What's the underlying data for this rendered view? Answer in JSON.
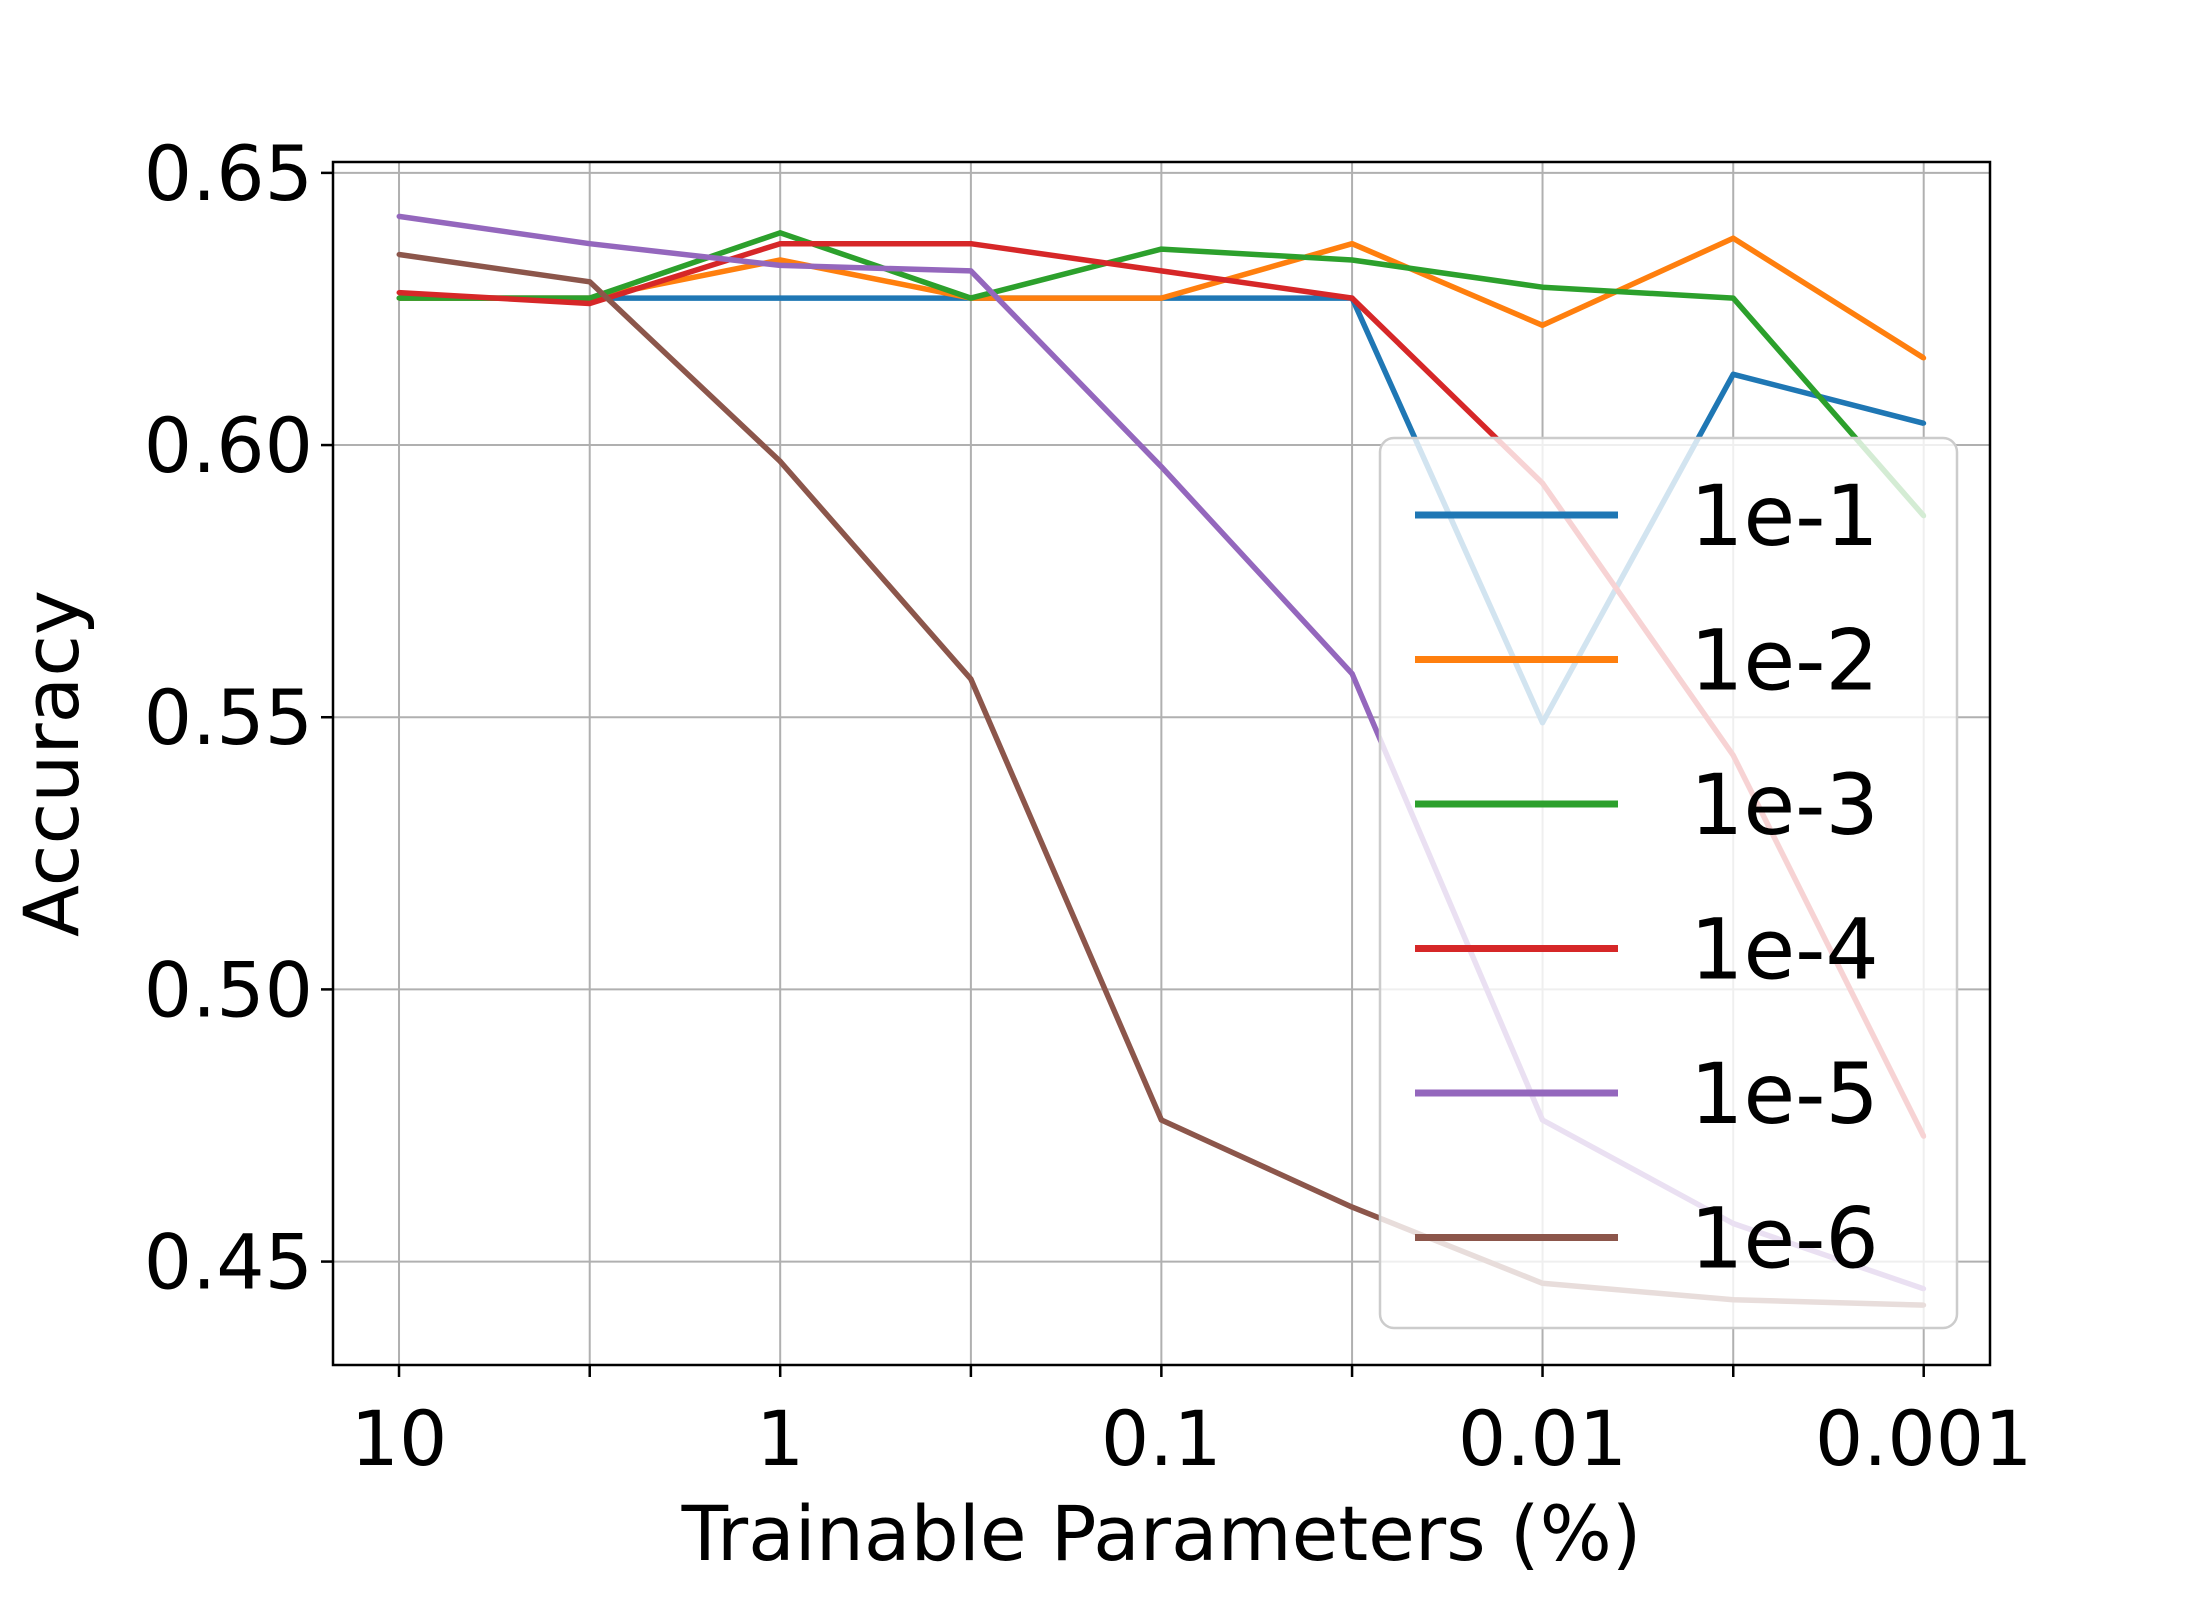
{
  "chart_data": {
    "type": "line",
    "title": "",
    "xlabel": "Trainable Parameters (%)",
    "ylabel": "Accuracy",
    "x_scale": "log",
    "x_reversed": true,
    "x": [
      10,
      3.16,
      1,
      0.316,
      0.1,
      0.0316,
      0.01,
      0.00316,
      0.001
    ],
    "x_ticks": [
      10,
      1,
      0.1,
      0.01,
      0.001
    ],
    "x_tick_labels": [
      "10",
      "1",
      "0.1",
      "0.01",
      "0.001"
    ],
    "xlim": [
      14.9,
      0.00067
    ],
    "ylim": [
      0.431,
      0.652
    ],
    "y_ticks": [
      0.45,
      0.5,
      0.55,
      0.6,
      0.65
    ],
    "y_tick_labels": [
      "0.45",
      "0.50",
      "0.55",
      "0.60",
      "0.65"
    ],
    "grid": true,
    "legend_position": "lower-right",
    "series": [
      {
        "name": "1e-1",
        "color": "#1f77b4",
        "values": [
          0.627,
          0.627,
          0.627,
          0.627,
          0.627,
          0.627,
          0.549,
          0.613,
          0.604
        ]
      },
      {
        "name": "1e-2",
        "color": "#ff7f0e",
        "values": [
          0.627,
          0.627,
          0.634,
          0.627,
          0.627,
          0.637,
          0.622,
          0.638,
          0.616
        ]
      },
      {
        "name": "1e-3",
        "color": "#2ca02c",
        "values": [
          0.627,
          0.627,
          0.639,
          0.627,
          0.636,
          0.634,
          0.629,
          0.627,
          0.587
        ]
      },
      {
        "name": "1e-4",
        "color": "#d62728",
        "values": [
          0.628,
          0.626,
          0.637,
          0.637,
          0.632,
          0.627,
          0.593,
          0.543,
          0.473
        ]
      },
      {
        "name": "1e-5",
        "color": "#9467bd",
        "values": [
          0.642,
          0.637,
          0.633,
          0.632,
          0.596,
          0.558,
          0.476,
          0.457,
          0.445
        ]
      },
      {
        "name": "1e-6",
        "color": "#8c564b",
        "values": [
          0.635,
          0.63,
          0.597,
          0.557,
          0.476,
          0.46,
          0.446,
          0.443,
          0.442
        ]
      }
    ]
  }
}
